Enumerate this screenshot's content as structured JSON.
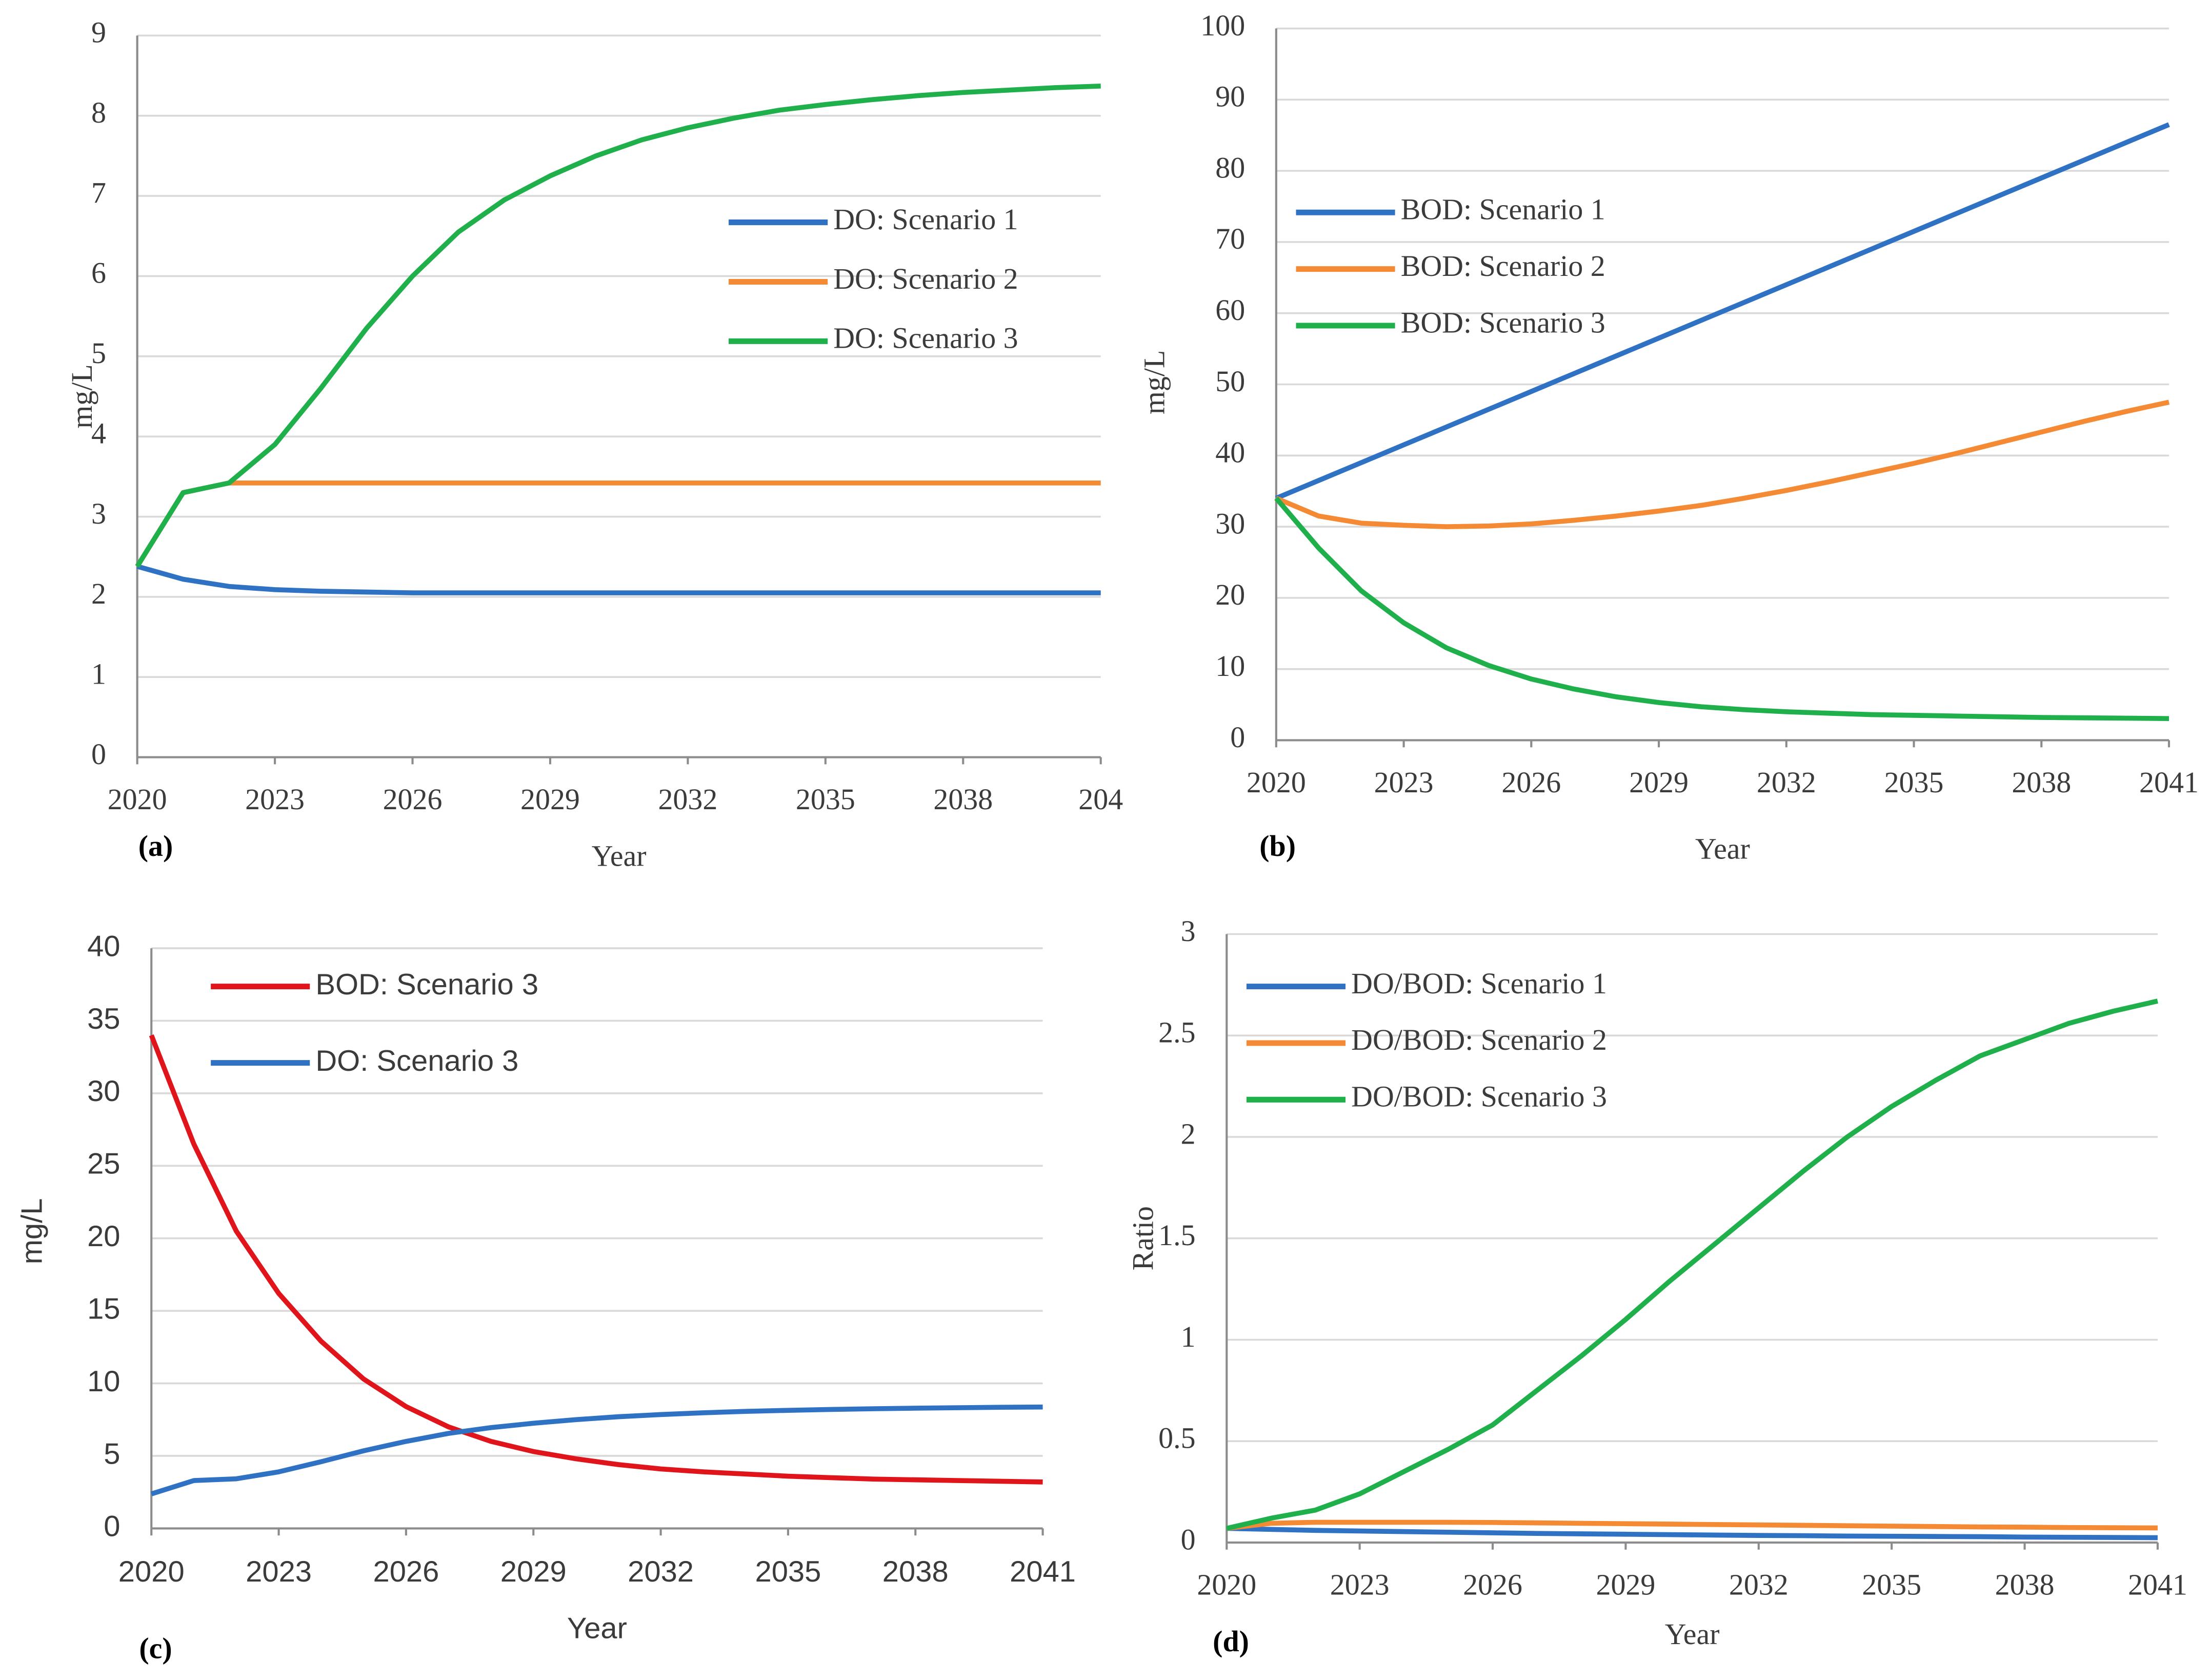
{
  "chart_data": [
    {
      "type": "line",
      "panel_label": "(a)",
      "x_label": "Year",
      "y_label": "mg/L",
      "x": [
        2020,
        2021,
        2022,
        2023,
        2024,
        2025,
        2026,
        2027,
        2028,
        2029,
        2030,
        2031,
        2032,
        2033,
        2034,
        2035,
        2036,
        2037,
        2038,
        2039,
        2040,
        2041
      ],
      "xlim": [
        2020,
        2041
      ],
      "xticks": [
        2020,
        2023,
        2026,
        2029,
        2032,
        2035,
        2038,
        {
          "value": 2041,
          "label": "204"
        }
      ],
      "ylim": [
        0,
        9
      ],
      "yticks": [
        0,
        1,
        2,
        3,
        4,
        5,
        6,
        7,
        8,
        9
      ],
      "grid": true,
      "legend": "center right",
      "series": [
        {
          "name": "DO: Scenario 1",
          "color": "#2f72c4",
          "values": [
            2.38,
            2.22,
            2.13,
            2.09,
            2.07,
            2.06,
            2.05,
            2.05,
            2.05,
            2.05,
            2.05,
            2.05,
            2.05,
            2.05,
            2.05,
            2.05,
            2.05,
            2.05,
            2.05,
            2.05,
            2.05,
            2.05
          ]
        },
        {
          "name": "DO: Scenario 2",
          "color": "#f58a35",
          "values": [
            2.38,
            3.3,
            3.42,
            3.42,
            3.42,
            3.42,
            3.42,
            3.42,
            3.42,
            3.42,
            3.42,
            3.42,
            3.42,
            3.42,
            3.42,
            3.42,
            3.42,
            3.42,
            3.42,
            3.42,
            3.42,
            3.42
          ]
        },
        {
          "name": "DO: Scenario 3",
          "color": "#1fb04b",
          "values": [
            2.38,
            3.3,
            3.42,
            3.9,
            4.6,
            5.35,
            6.0,
            6.55,
            6.95,
            7.25,
            7.5,
            7.7,
            7.85,
            7.97,
            8.07,
            8.14,
            8.2,
            8.25,
            8.29,
            8.32,
            8.35,
            8.37
          ]
        }
      ]
    },
    {
      "type": "line",
      "panel_label": "(b)",
      "x_label": "Year",
      "y_label": "mg/L",
      "x": [
        2020,
        2021,
        2022,
        2023,
        2024,
        2025,
        2026,
        2027,
        2028,
        2029,
        2030,
        2031,
        2032,
        2033,
        2034,
        2035,
        2036,
        2037,
        2038,
        2039,
        2040,
        2041
      ],
      "xlim": [
        2020,
        2041
      ],
      "xticks": [
        2020,
        2023,
        2026,
        2029,
        2032,
        2035,
        2038,
        2041
      ],
      "ylim": [
        0,
        100
      ],
      "yticks": [
        0,
        10,
        20,
        30,
        40,
        50,
        60,
        70,
        80,
        90,
        100
      ],
      "grid": true,
      "legend": "upper left",
      "series": [
        {
          "name": "BOD: Scenario 1",
          "color": "#2f72c4",
          "values": [
            34,
            36.5,
            39,
            41.5,
            44,
            46.5,
            49,
            51.5,
            54,
            56.5,
            59,
            61.5,
            64,
            66.5,
            69,
            71.5,
            74,
            76.5,
            79,
            81.5,
            84,
            86.5
          ]
        },
        {
          "name": "BOD: Scenario 2",
          "color": "#f58a35",
          "values": [
            34,
            31.5,
            30.5,
            30.2,
            30.0,
            30.1,
            30.4,
            30.9,
            31.5,
            32.2,
            33.0,
            34.0,
            35.1,
            36.3,
            37.6,
            38.9,
            40.3,
            41.8,
            43.3,
            44.8,
            46.2,
            47.5
          ]
        },
        {
          "name": "BOD: Scenario 3",
          "color": "#1fb04b",
          "values": [
            34,
            27,
            21,
            16.5,
            13,
            10.5,
            8.6,
            7.2,
            6.1,
            5.3,
            4.7,
            4.3,
            4.0,
            3.8,
            3.6,
            3.5,
            3.4,
            3.3,
            3.2,
            3.15,
            3.1,
            3.05
          ]
        }
      ]
    },
    {
      "type": "line",
      "panel_label": "(c)",
      "x_label": "Year",
      "y_label": "mg/L",
      "x": [
        2020,
        2021,
        2022,
        2023,
        2024,
        2025,
        2026,
        2027,
        2028,
        2029,
        2030,
        2031,
        2032,
        2033,
        2034,
        2035,
        2036,
        2037,
        2038,
        2039,
        2040,
        2041
      ],
      "xlim": [
        2020,
        2041
      ],
      "xticks": [
        2020,
        2023,
        2026,
        2029,
        2032,
        2035,
        2038,
        2041
      ],
      "ylim": [
        0,
        40
      ],
      "yticks": [
        0,
        5,
        10,
        15,
        20,
        25,
        30,
        35,
        40
      ],
      "grid": true,
      "legend": "upper left",
      "series": [
        {
          "name": "BOD: Scenario 3",
          "color": "#e0141b",
          "values": [
            34,
            26.5,
            20.5,
            16.2,
            12.9,
            10.3,
            8.4,
            7.0,
            6.0,
            5.3,
            4.8,
            4.4,
            4.1,
            3.9,
            3.75,
            3.6,
            3.5,
            3.4,
            3.35,
            3.3,
            3.25,
            3.2
          ]
        },
        {
          "name": "DO: Scenario 3",
          "color": "#2f72c4",
          "values": [
            2.38,
            3.3,
            3.42,
            3.9,
            4.6,
            5.35,
            6.0,
            6.55,
            6.95,
            7.25,
            7.5,
            7.7,
            7.85,
            7.97,
            8.07,
            8.14,
            8.2,
            8.25,
            8.29,
            8.32,
            8.35,
            8.37
          ]
        }
      ]
    },
    {
      "type": "line",
      "panel_label": "(d)",
      "x_label": "Year",
      "y_label": "Ratio",
      "x": [
        2020,
        2021,
        2022,
        2023,
        2024,
        2025,
        2026,
        2027,
        2028,
        2029,
        2030,
        2031,
        2032,
        2033,
        2034,
        2035,
        2036,
        2037,
        2038,
        2039,
        2040,
        2041
      ],
      "xlim": [
        2020,
        2041
      ],
      "xticks": [
        2020,
        2023,
        2026,
        2029,
        2032,
        2035,
        2038,
        2041
      ],
      "ylim": [
        0,
        3
      ],
      "yticks": [
        0,
        0.5,
        1,
        1.5,
        2,
        2.5,
        3
      ],
      "grid": true,
      "legend": "upper left",
      "series": [
        {
          "name": "DO/BOD: Scenario 1",
          "color": "#2f72c4",
          "values": [
            0.07,
            0.065,
            0.06,
            0.057,
            0.054,
            0.051,
            0.048,
            0.045,
            0.043,
            0.041,
            0.039,
            0.037,
            0.035,
            0.034,
            0.032,
            0.031,
            0.03,
            0.029,
            0.027,
            0.026,
            0.025,
            0.024
          ]
        },
        {
          "name": "DO/BOD: Scenario 2",
          "color": "#f58a35",
          "values": [
            0.07,
            0.095,
            0.1,
            0.1,
            0.1,
            0.1,
            0.099,
            0.097,
            0.095,
            0.093,
            0.091,
            0.089,
            0.087,
            0.085,
            0.083,
            0.081,
            0.079,
            0.077,
            0.076,
            0.074,
            0.073,
            0.072
          ]
        },
        {
          "name": "DO/BOD: Scenario 3",
          "color": "#1fb04b",
          "values": [
            0.07,
            0.12,
            0.16,
            0.24,
            0.35,
            0.46,
            0.58,
            0.75,
            0.92,
            1.1,
            1.29,
            1.47,
            1.65,
            1.83,
            2.0,
            2.15,
            2.28,
            2.4,
            2.48,
            2.56,
            2.62,
            2.67
          ]
        }
      ]
    }
  ]
}
